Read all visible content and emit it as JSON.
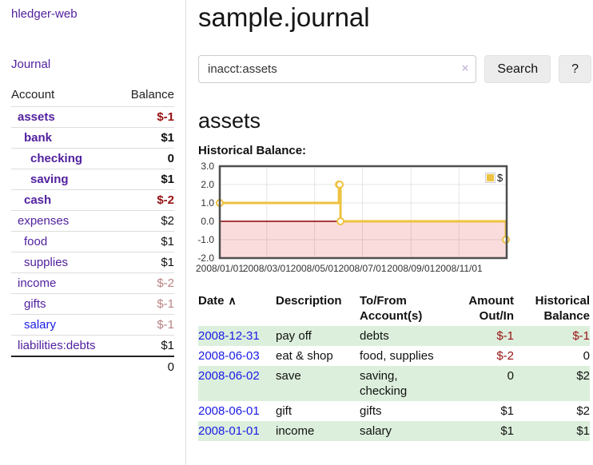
{
  "app": {
    "brand": "hledger-web"
  },
  "sidebar": {
    "nav": {
      "journal": "Journal"
    },
    "header": {
      "account": "Account",
      "balance": "Balance"
    },
    "accounts": [
      {
        "name": "assets",
        "balance": "$-1"
      },
      {
        "name": "bank",
        "balance": "$1"
      },
      {
        "name": "checking",
        "balance": "0"
      },
      {
        "name": "saving",
        "balance": "$1"
      },
      {
        "name": "cash",
        "balance": "$-2"
      },
      {
        "name": "expenses",
        "balance": "$2"
      },
      {
        "name": "food",
        "balance": "$1"
      },
      {
        "name": "supplies",
        "balance": "$1"
      },
      {
        "name": "income",
        "balance": "$-2"
      },
      {
        "name": "gifts",
        "balance": "$-1"
      },
      {
        "name": "salary",
        "balance": "$-1"
      },
      {
        "name": "liabilities:debts",
        "balance": "$1"
      }
    ],
    "total": "0"
  },
  "main": {
    "title": "sample.journal",
    "search": {
      "value": "inacct:assets",
      "clear_icon": "×",
      "button_label": "Search",
      "help_label": "?"
    },
    "account_heading": "assets"
  },
  "chart_data": {
    "type": "line",
    "step": true,
    "title": "Historical Balance:",
    "series": [
      {
        "name": "$",
        "color": "#edc240",
        "points": [
          [
            "2008-01-01",
            1
          ],
          [
            "2008-06-01",
            2
          ],
          [
            "2008-06-02",
            2
          ],
          [
            "2008-06-03",
            0
          ],
          [
            "2008-12-31",
            -1
          ]
        ]
      }
    ],
    "xlim": [
      "2008-01-01",
      "2009-01-01"
    ],
    "ylim": [
      -2,
      3
    ],
    "y_ticks": [
      {
        "label": "3.0",
        "value": 3
      },
      {
        "label": "2.0",
        "value": 2
      },
      {
        "label": "1.0",
        "value": 1
      },
      {
        "label": "0.0",
        "value": 0
      },
      {
        "label": "-1.0",
        "value": -1
      },
      {
        "label": "-2.0",
        "value": -2
      }
    ],
    "x_ticks": [
      {
        "label": "2008/01/01",
        "date": "2008-01-01"
      },
      {
        "label": "2008/03/01",
        "date": "2008-03-01"
      },
      {
        "label": "2008/05/01",
        "date": "2008-05-01"
      },
      {
        "label": "2008/07/01",
        "date": "2008-07-01"
      },
      {
        "label": "2008/09/01",
        "date": "2008-09-01"
      },
      {
        "label": "2008/11/01",
        "date": "2008-11-01"
      }
    ],
    "legend": {
      "label": "$",
      "position": "top-right"
    },
    "grid": true,
    "negative_region_color": "#fbdcdc",
    "zero_line_color": "#8b0000"
  },
  "register": {
    "sort_icon": "∧",
    "headers": {
      "date": "Date",
      "description": "Description",
      "account": "To/From Account(s)",
      "amount": "Amount Out/In",
      "balance": "Historical Balance"
    },
    "rows": [
      {
        "date": "2008-12-31",
        "description": "pay off",
        "accounts": "debts",
        "amount": "$-1",
        "balance": "$-1"
      },
      {
        "date": "2008-06-03",
        "description": "eat & shop",
        "accounts": "food, supplies",
        "amount": "$-2",
        "balance": "0"
      },
      {
        "date": "2008-06-02",
        "description": "save",
        "accounts": "saving, checking",
        "amount": "0",
        "balance": "$2"
      },
      {
        "date": "2008-06-01",
        "description": "gift",
        "accounts": "gifts",
        "amount": "$1",
        "balance": "$2"
      },
      {
        "date": "2008-01-01",
        "description": "income",
        "accounts": "salary",
        "amount": "$1",
        "balance": "$1"
      }
    ]
  }
}
